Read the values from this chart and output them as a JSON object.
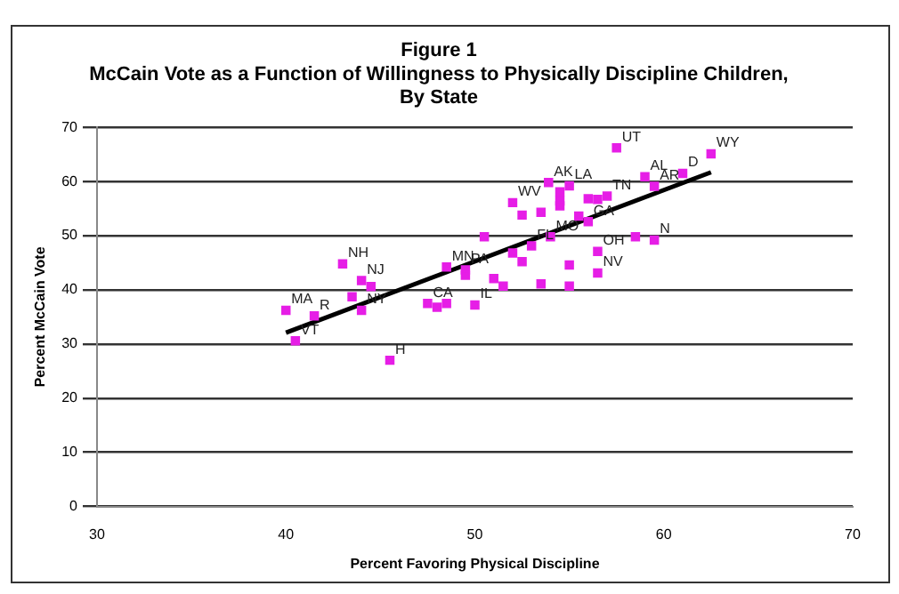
{
  "chart_data": {
    "type": "scatter",
    "title": "Figure 1\nMcCain Vote as a Function of Willingness to Physically Discipline Children,\nBy State",
    "xlabel": "Percent Favoring Physical Discipline",
    "ylabel": "Percent McCain Vote",
    "xlim": [
      30,
      70
    ],
    "xticks": [
      30,
      40,
      50,
      60,
      70
    ],
    "ylim": [
      0,
      70
    ],
    "yticks": [
      0,
      10,
      20,
      30,
      40,
      50,
      60,
      70
    ],
    "grid": "y",
    "legend": false,
    "marker": "square",
    "series": [
      {
        "color": "#e61ee6",
        "x": [
          40.0,
          40.5,
          41.5,
          43.0,
          43.5,
          44.0,
          44.5,
          44.0,
          45.5,
          47.5,
          48.0,
          48.5,
          48.5,
          49.5,
          49.5,
          50.0,
          50.5,
          51.0,
          51.5,
          52.0,
          52.5,
          52.0,
          52.5,
          53.0,
          53.5,
          53.5,
          53.9,
          54.0,
          54.5,
          54.5,
          54.5,
          55.0,
          55.0,
          55.0,
          55.5,
          56.0,
          56.0,
          56.5,
          57.0,
          56.5,
          56.5,
          57.5,
          58.5,
          59.0,
          59.5,
          59.5,
          61.0,
          62.5
        ],
        "values": [
          36.2,
          30.6,
          35.2,
          44.8,
          38.7,
          41.7,
          40.6,
          36.2,
          27.0,
          37.5,
          36.8,
          37.5,
          44.2,
          43.7,
          42.7,
          37.2,
          49.8,
          42.1,
          40.7,
          46.8,
          45.2,
          56.1,
          53.8,
          48.1,
          54.3,
          41.1,
          59.8,
          49.8,
          58.1,
          56.4,
          55.5,
          59.2,
          44.6,
          40.7,
          53.6,
          56.8,
          52.6,
          56.7,
          57.3,
          47.1,
          43.1,
          66.2,
          49.8,
          60.9,
          59.1,
          49.2,
          61.5,
          65.1
        ]
      },
      {
        "type": "line",
        "color": "#000000",
        "x": [
          40.0,
          62.5
        ],
        "values": [
          32.1,
          61.7
        ],
        "marker": "none",
        "line_style": "solid"
      }
    ],
    "annotations": [
      {
        "text": "MA",
        "x": 40.0,
        "y": 36.2
      },
      {
        "text": "VT",
        "x": 40.5,
        "y": 30.6
      },
      {
        "text": "R",
        "x": 41.5,
        "y": 35.2
      },
      {
        "text": "NH",
        "x": 43.0,
        "y": 44.8
      },
      {
        "text": "NJ",
        "x": 44.0,
        "y": 41.7
      },
      {
        "text": "NY",
        "x": 44.0,
        "y": 36.2
      },
      {
        "text": "H",
        "x": 45.5,
        "y": 27.0
      },
      {
        "text": "CA",
        "x": 47.5,
        "y": 37.5
      },
      {
        "text": "MN",
        "x": 48.5,
        "y": 44.2
      },
      {
        "text": "PA",
        "x": 49.5,
        "y": 43.7
      },
      {
        "text": "IL",
        "x": 50.0,
        "y": 37.2
      },
      {
        "text": "WV",
        "x": 52.0,
        "y": 56.1
      },
      {
        "text": "FL",
        "x": 53.0,
        "y": 48.1
      },
      {
        "text": "AK",
        "x": 53.9,
        "y": 59.8
      },
      {
        "text": "LA",
        "x": 55.0,
        "y": 59.2
      },
      {
        "text": "MO",
        "x": 54.0,
        "y": 49.8
      },
      {
        "text": "UT",
        "x": 57.5,
        "y": 66.2
      },
      {
        "text": "TN",
        "x": 57.0,
        "y": 57.3
      },
      {
        "text": "GA",
        "x": 56.0,
        "y": 52.6
      },
      {
        "text": "OH",
        "x": 56.5,
        "y": 47.1
      },
      {
        "text": "NV",
        "x": 56.5,
        "y": 43.1
      },
      {
        "text": "AL",
        "x": 59.0,
        "y": 60.9
      },
      {
        "text": "D",
        "x": 61.0,
        "y": 61.5
      },
      {
        "text": "AR",
        "x": 59.5,
        "y": 59.1
      },
      {
        "text": "N",
        "x": 59.5,
        "y": 49.2
      },
      {
        "text": "WY",
        "x": 62.5,
        "y": 65.1
      }
    ]
  }
}
